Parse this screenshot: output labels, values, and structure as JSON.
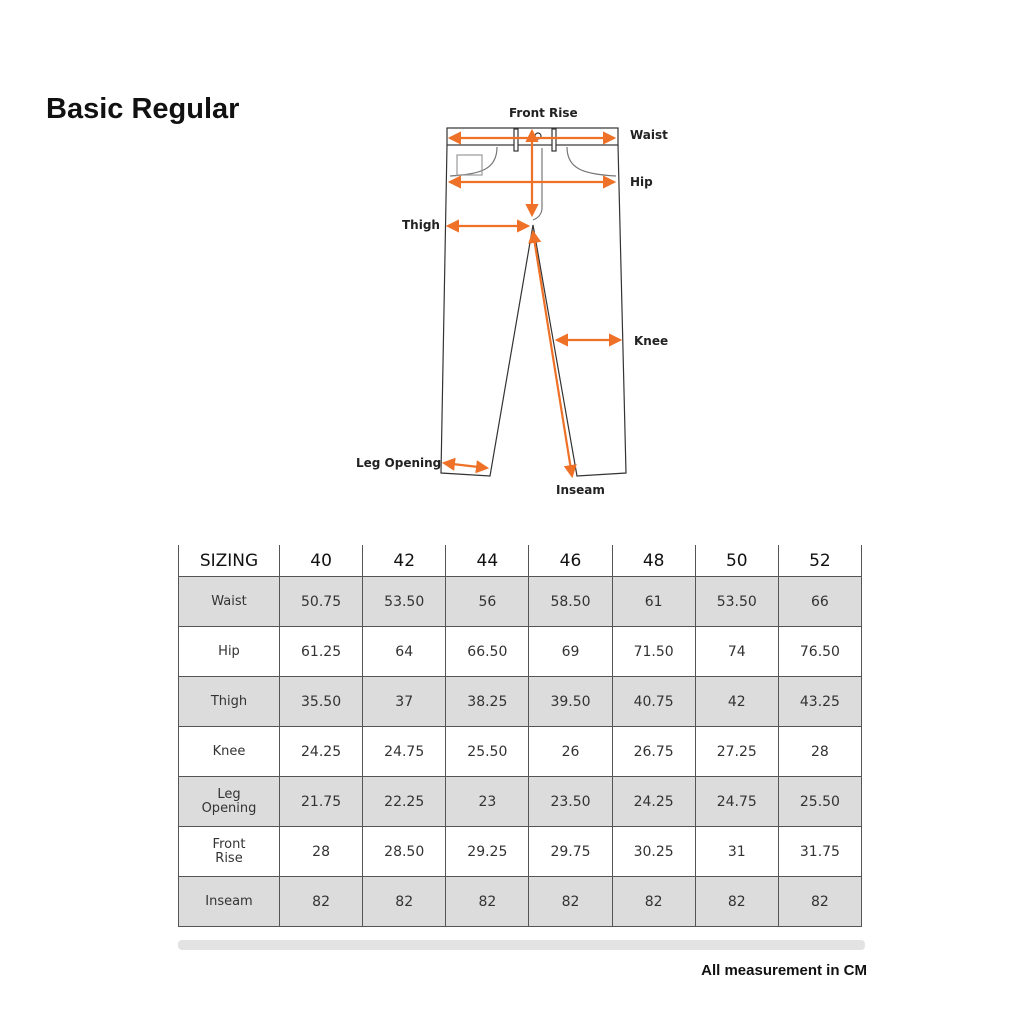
{
  "title": "Basic Regular",
  "diagram": {
    "labels": {
      "front_rise": "Front Rise",
      "waist": "Waist",
      "hip": "Hip",
      "thigh": "Thigh",
      "knee": "Knee",
      "leg_opening": "Leg Opening",
      "inseam": "Inseam"
    },
    "arrow_color": "#ee7127",
    "outline_color": "#333333"
  },
  "table": {
    "header": [
      "SIZING",
      "40",
      "42",
      "44",
      "46",
      "48",
      "50",
      "52"
    ],
    "rows": [
      {
        "label": "Waist",
        "values": [
          "50.75",
          "53.50",
          "56",
          "58.50",
          "61",
          "53.50",
          "66"
        ]
      },
      {
        "label": "Hip",
        "values": [
          "61.25",
          "64",
          "66.50",
          "69",
          "71.50",
          "74",
          "76.50"
        ]
      },
      {
        "label": "Thigh",
        "values": [
          "35.50",
          "37",
          "38.25",
          "39.50",
          "40.75",
          "42",
          "43.25"
        ]
      },
      {
        "label": "Knee",
        "values": [
          "24.25",
          "24.75",
          "25.50",
          "26",
          "26.75",
          "27.25",
          "28"
        ]
      },
      {
        "label": "Leg\nOpening",
        "values": [
          "21.75",
          "22.25",
          "23",
          "23.50",
          "24.25",
          "24.75",
          "25.50"
        ]
      },
      {
        "label": "Front\nRise",
        "values": [
          "28",
          "28.50",
          "29.25",
          "29.75",
          "30.25",
          "31",
          "31.75"
        ]
      },
      {
        "label": "Inseam",
        "values": [
          "82",
          "82",
          "82",
          "82",
          "82",
          "82",
          "82"
        ]
      }
    ]
  },
  "footer": "All measurement in CM"
}
